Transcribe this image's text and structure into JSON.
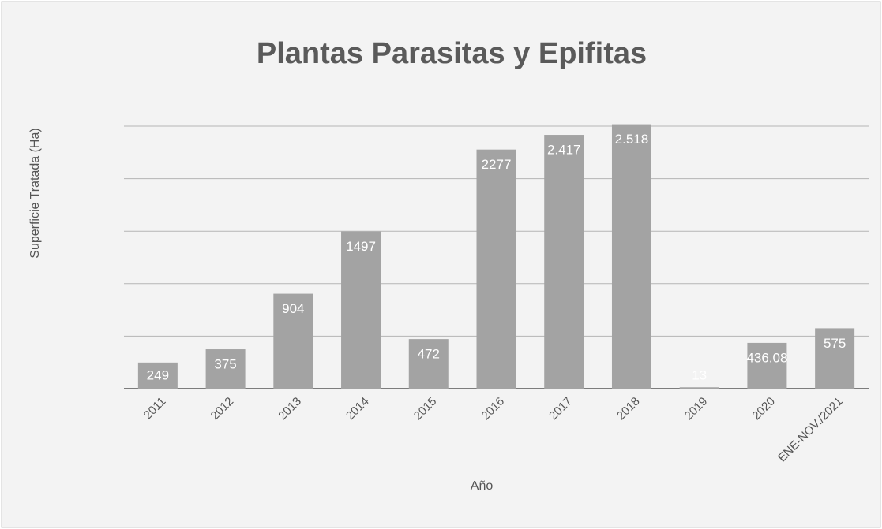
{
  "chart_data": {
    "type": "bar",
    "title": "Plantas Parasitas y Epifitas",
    "x_label": "Año",
    "y_label": "Superficie Tratada (Ha)",
    "categories": [
      "2011",
      "2012",
      "2013",
      "2014",
      "2015",
      "2016",
      "2017",
      "2018",
      "2019",
      "2020",
      "ENE-NOV./2021"
    ],
    "values": [
      249,
      375,
      904,
      1497,
      472,
      2277,
      2417,
      2518,
      13,
      436.08,
      575
    ],
    "value_labels": [
      "249",
      "375",
      "904",
      "1497",
      "472",
      "2277",
      "2.417",
      "2.518",
      "13",
      "436.08",
      "575"
    ],
    "color": "#a3a3a3",
    "ylim": [
      0,
      2650
    ],
    "yticks": [
      0,
      500,
      1000,
      1500,
      2000,
      2500
    ],
    "grid": true
  }
}
